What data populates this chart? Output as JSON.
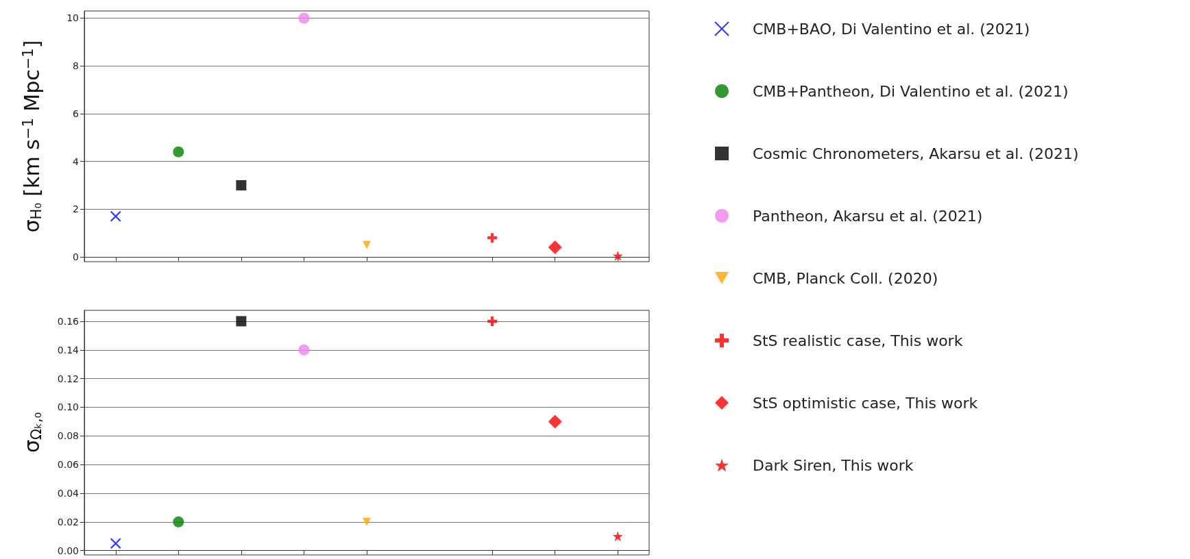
{
  "chart_data": [
    {
      "type": "scatter",
      "ylabel": "σ$_{H₀}$ [km s$^{−1}$ Mpc$^{−1}$]",
      "categories": [
        null,
        null,
        null,
        null,
        null,
        null,
        null,
        null,
        null
      ],
      "ylim": [
        -0.2,
        10.3
      ],
      "yticks": [
        0,
        2,
        4,
        6,
        8,
        10
      ],
      "grid": "y",
      "legend": "right",
      "tick_labels": "y",
      "series": [
        {
          "name": "CMB+BAO, Di Valentino et al. (2021)",
          "color": "#0000ff",
          "marker": "x",
          "values": [
            1.7,
            null,
            null,
            null,
            null,
            null,
            null,
            null,
            null
          ]
        },
        {
          "name": "CMB+Pantheon, Di Valentino et al. (2021)",
          "color": "#008000",
          "marker": "circle",
          "values": [
            null,
            4.4,
            null,
            null,
            null,
            null,
            null,
            null,
            null
          ]
        },
        {
          "name": "Cosmic Chronometers, Akarsu et al. (2021)",
          "color": "#000000",
          "marker": "square",
          "values": [
            null,
            null,
            3.0,
            null,
            null,
            null,
            null,
            null,
            null
          ]
        },
        {
          "name": "Pantheon, Akarsu et al. (2021)",
          "color": "#ee82ee",
          "marker": "circle",
          "values": [
            null,
            null,
            null,
            10.0,
            null,
            null,
            null,
            null,
            null
          ]
        },
        {
          "name": "CMB, Planck Coll. (2020)",
          "color": "#ffa500",
          "marker": "triangle",
          "values": [
            null,
            null,
            null,
            null,
            0.5,
            null,
            null,
            null,
            null
          ]
        },
        {
          "name": "StS realistic case, This work",
          "color": "#ff0000",
          "marker": "plus",
          "values": [
            null,
            null,
            null,
            null,
            null,
            null,
            0.8,
            null,
            null
          ]
        },
        {
          "name": "StS optimistic case, This work",
          "color": "#ff0000",
          "marker": "diamond",
          "values": [
            null,
            null,
            null,
            null,
            null,
            null,
            null,
            0.4,
            null
          ]
        },
        {
          "name": "Dark Siren, This work",
          "color": "#ff0000",
          "marker": "star",
          "values": [
            null,
            null,
            null,
            null,
            null,
            null,
            null,
            null,
            0.05
          ]
        }
      ]
    },
    {
      "type": "scatter",
      "ylabel": "σ$_{Ωₖ,₀}$",
      "categories": [
        null,
        null,
        null,
        null,
        null,
        null,
        null,
        null,
        null
      ],
      "ylim": [
        -0.003,
        0.1676
      ],
      "yticks": [
        {
          "value": 0,
          "label": "0.00"
        },
        {
          "value": 0.02,
          "label": "0.02"
        },
        {
          "value": 0.04,
          "label": "0.04"
        },
        {
          "value": 0.06,
          "label": "0.06"
        },
        {
          "value": 0.08,
          "label": "0.08"
        },
        {
          "value": 0.1,
          "label": "0.10"
        },
        {
          "value": 0.12,
          "label": "0.12"
        },
        {
          "value": 0.14,
          "label": "0.14"
        },
        {
          "value": 0.16,
          "label": "0.16"
        }
      ],
      "grid": "y",
      "tick_labels": "y",
      "series": [
        {
          "color": "#0000ff",
          "marker": "x",
          "values": [
            0.005,
            null,
            null,
            null,
            null,
            null,
            null,
            null,
            null
          ]
        },
        {
          "color": "#008000",
          "marker": "circle",
          "values": [
            null,
            0.02,
            null,
            null,
            null,
            null,
            null,
            null,
            null
          ]
        },
        {
          "color": "#000000",
          "marker": "square",
          "values": [
            null,
            null,
            0.16,
            null,
            null,
            null,
            null,
            null,
            null
          ]
        },
        {
          "color": "#ee82ee",
          "marker": "circle",
          "values": [
            null,
            null,
            null,
            0.14,
            null,
            null,
            null,
            null,
            null
          ]
        },
        {
          "color": "#ffa500",
          "marker": "triangle",
          "values": [
            null,
            null,
            null,
            null,
            0.02,
            null,
            null,
            null,
            null
          ]
        },
        {
          "color": "#ff0000",
          "marker": "plus",
          "values": [
            null,
            null,
            null,
            null,
            null,
            null,
            0.16,
            null,
            null
          ]
        },
        {
          "color": "#ff0000",
          "marker": "diamond",
          "values": [
            null,
            null,
            null,
            null,
            null,
            null,
            null,
            0.09,
            null
          ]
        },
        {
          "color": "#ff0000",
          "marker": "star",
          "values": [
            null,
            null,
            null,
            null,
            null,
            null,
            null,
            null,
            0.01
          ]
        }
      ]
    }
  ]
}
